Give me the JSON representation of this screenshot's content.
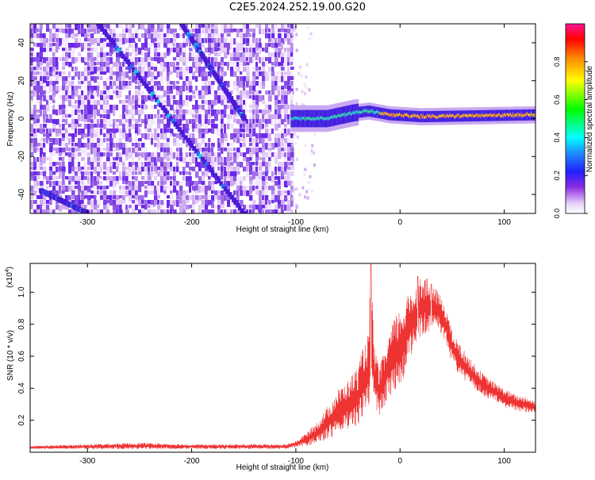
{
  "page_title": "C2E5.2024.252.19.00.G20",
  "colors": {
    "snr_line": "#ee3333",
    "frame": "#000000"
  },
  "chart_data": [
    {
      "type": "heatmap",
      "title": "C2E5.2024.252.19.00.G20",
      "xlabel": "Height of straight line (km)",
      "ylabel": "Frequency (Hz)",
      "xlim": [
        -355,
        130
      ],
      "ylim": [
        -50,
        50
      ],
      "x_ticks": [
        -300,
        -200,
        -100,
        0,
        100
      ],
      "y_ticks": [
        -40,
        -20,
        0,
        20,
        40
      ],
      "colorbar": {
        "label": "Normalized spectral amplitude",
        "range": [
          0,
          1
        ],
        "ticks": [
          0.0,
          0.2,
          0.4,
          0.6,
          0.8
        ],
        "tick_labels": [
          "0.0",
          "0.2",
          "0.4",
          "0.6",
          "0.8"
        ]
      },
      "noise_region_x": [
        -355,
        -105
      ],
      "features": [
        {
          "kind": "diagonal-trace",
          "from": [
            -290,
            50
          ],
          "to": [
            -150,
            -50
          ]
        },
        {
          "kind": "diagonal-trace",
          "from": [
            -210,
            50
          ],
          "to": [
            -150,
            0
          ]
        },
        {
          "kind": "diagonal-trace",
          "from": [
            -345,
            -38
          ],
          "to": [
            -300,
            -50
          ]
        },
        {
          "kind": "carrier-band",
          "x": [
            -105,
            130
          ],
          "freq": [
            [
              -105,
              0
            ],
            [
              -70,
              0
            ],
            [
              -45,
              3
            ],
            [
              -30,
              4
            ],
            [
              -10,
              2
            ],
            [
              20,
              1
            ],
            [
              130,
              2
            ]
          ]
        }
      ]
    },
    {
      "type": "line",
      "xlabel": "Height of straight line (km)",
      "ylabel": "SNR (10 * v/v)",
      "y_multiplier": "(x10",
      "y_multiplier_exp": "4",
      "y_multiplier_close": ")",
      "xlim": [
        -355,
        130
      ],
      "ylim": [
        0,
        1.18
      ],
      "x_ticks": [
        -300,
        -200,
        -100,
        0,
        100
      ],
      "y_ticks": [
        0.2,
        0.4,
        0.6,
        0.8,
        1.0
      ],
      "y_tick_labels": [
        "0.2",
        "0.4",
        "0.6",
        "0.8",
        "1.0"
      ],
      "series": [
        {
          "x": [
            -355,
            -300,
            -250,
            -200,
            -150,
            -110,
            -100,
            -90,
            -80,
            -70,
            -60,
            -50,
            -40,
            -35,
            -30,
            -28,
            -25,
            -20,
            -15,
            -10,
            -5,
            0,
            5,
            10,
            15,
            20,
            25,
            30,
            35,
            40,
            45,
            50,
            60,
            70,
            80,
            90,
            100,
            110,
            120,
            130
          ],
          "y": [
            0.03,
            0.035,
            0.04,
            0.035,
            0.035,
            0.035,
            0.05,
            0.08,
            0.12,
            0.18,
            0.25,
            0.3,
            0.35,
            0.45,
            0.5,
            0.9,
            0.48,
            0.38,
            0.45,
            0.55,
            0.6,
            0.65,
            0.72,
            0.8,
            0.85,
            0.9,
            0.92,
            0.88,
            0.9,
            0.85,
            0.78,
            0.65,
            0.55,
            0.48,
            0.42,
            0.38,
            0.34,
            0.31,
            0.3,
            0.28
          ],
          "spread": [
            0.01,
            0.015,
            0.02,
            0.015,
            0.015,
            0.015,
            0.02,
            0.04,
            0.07,
            0.1,
            0.14,
            0.15,
            0.2,
            0.22,
            0.25,
            0.3,
            0.2,
            0.15,
            0.18,
            0.2,
            0.25,
            0.25,
            0.22,
            0.22,
            0.18,
            0.2,
            0.18,
            0.15,
            0.12,
            0.12,
            0.12,
            0.1,
            0.1,
            0.08,
            0.07,
            0.06,
            0.06,
            0.05,
            0.05,
            0.04
          ],
          "peaks": [
            [
              -28,
              1.18
            ],
            [
              17,
              1.1
            ],
            [
              30,
              1.05
            ]
          ]
        }
      ]
    }
  ]
}
